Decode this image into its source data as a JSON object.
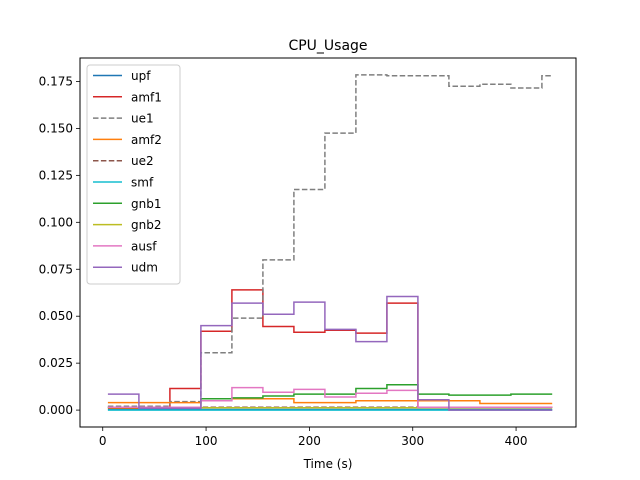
{
  "chart_data": {
    "type": "line",
    "title": "CPU_Usage",
    "xlabel": "Time (s)",
    "ylabel": "",
    "xlim": [
      -22,
      458
    ],
    "ylim": [
      -0.009,
      0.1875
    ],
    "xticks": [
      0,
      100,
      200,
      300,
      400
    ],
    "yticks": [
      0.0,
      0.025,
      0.05,
      0.075,
      0.1,
      0.125,
      0.15,
      0.175
    ],
    "ytick_labels": [
      "0.000",
      "0.025",
      "0.050",
      "0.075",
      "0.100",
      "0.125",
      "0.150",
      "0.175"
    ],
    "grid": false,
    "legend_position": "top-left",
    "series": [
      {
        "name": "upf",
        "color": "#1f77b4",
        "dash": "solid",
        "x": [
          5,
          435
        ],
        "y": [
          0.0003,
          0.0003
        ]
      },
      {
        "name": "amf1",
        "color": "#d62728",
        "dash": "solid",
        "x": [
          5,
          35,
          35,
          65,
          65,
          95,
          95,
          125,
          125,
          155,
          155,
          185,
          185,
          215,
          215,
          245,
          245,
          275,
          275,
          305,
          305,
          435
        ],
        "y": [
          0.001,
          0.001,
          0.001,
          0.001,
          0.0115,
          0.0115,
          0.042,
          0.042,
          0.064,
          0.064,
          0.0445,
          0.0445,
          0.0415,
          0.0415,
          0.0425,
          0.0425,
          0.041,
          0.041,
          0.057,
          0.057,
          0.0015,
          0.0015
        ]
      },
      {
        "name": "ue1",
        "color": "#7f7f7f",
        "dash": "dashed",
        "x": [
          5,
          65,
          65,
          95,
          95,
          125,
          125,
          155,
          155,
          185,
          185,
          215,
          215,
          245,
          245,
          275,
          275,
          335,
          335,
          365,
          365,
          395,
          395,
          425,
          425,
          435
        ],
        "y": [
          0.002,
          0.002,
          0.0045,
          0.0045,
          0.0305,
          0.0305,
          0.049,
          0.049,
          0.08,
          0.08,
          0.1175,
          0.1175,
          0.1475,
          0.1475,
          0.1785,
          0.1785,
          0.178,
          0.178,
          0.1725,
          0.1725,
          0.1735,
          0.1735,
          0.1715,
          0.1715,
          0.178,
          0.178
        ]
      },
      {
        "name": "amf2",
        "color": "#ff7f0e",
        "dash": "solid",
        "x": [
          5,
          95,
          95,
          185,
          185,
          245,
          245,
          305,
          305,
          365,
          365,
          435
        ],
        "y": [
          0.004,
          0.004,
          0.006,
          0.006,
          0.004,
          0.004,
          0.005,
          0.005,
          0.005,
          0.005,
          0.0035,
          0.0035
        ]
      },
      {
        "name": "ue2",
        "color": "#8c564b",
        "dash": "dashed",
        "x": [
          5,
          435
        ],
        "y": [
          0.0015,
          0.0015
        ]
      },
      {
        "name": "smf",
        "color": "#17becf",
        "dash": "solid",
        "x": [
          5,
          435
        ],
        "y": [
          0.0,
          0.0
        ]
      },
      {
        "name": "gnb1",
        "color": "#2ca02c",
        "dash": "solid",
        "x": [
          5,
          95,
          95,
          125,
          125,
          155,
          155,
          185,
          185,
          245,
          245,
          275,
          275,
          305,
          305,
          335,
          335,
          395,
          395,
          425,
          425,
          435
        ],
        "y": [
          0.0015,
          0.0015,
          0.006,
          0.006,
          0.0065,
          0.0065,
          0.0075,
          0.0075,
          0.0085,
          0.0085,
          0.0115,
          0.0115,
          0.0135,
          0.0135,
          0.0085,
          0.0085,
          0.008,
          0.008,
          0.0085,
          0.0085,
          0.0085,
          0.0085
        ]
      },
      {
        "name": "gnb2",
        "color": "#bcbd22",
        "dash": "solid",
        "x": [
          5,
          435
        ],
        "y": [
          0.0012,
          0.0012
        ]
      },
      {
        "name": "ausf",
        "color": "#e377c2",
        "dash": "solid",
        "x": [
          5,
          95,
          95,
          125,
          125,
          155,
          155,
          185,
          185,
          215,
          215,
          245,
          245,
          275,
          275,
          305,
          305,
          435
        ],
        "y": [
          0.0015,
          0.0015,
          0.005,
          0.005,
          0.012,
          0.012,
          0.0095,
          0.0095,
          0.011,
          0.011,
          0.007,
          0.007,
          0.009,
          0.009,
          0.0105,
          0.0105,
          0.0015,
          0.0015
        ]
      },
      {
        "name": "udm",
        "color": "#9467bd",
        "dash": "solid",
        "x": [
          5,
          35,
          35,
          95,
          95,
          125,
          125,
          155,
          155,
          185,
          185,
          215,
          215,
          245,
          245,
          275,
          275,
          305,
          305,
          335,
          335,
          435
        ],
        "y": [
          0.0085,
          0.0085,
          0.001,
          0.001,
          0.045,
          0.045,
          0.057,
          0.057,
          0.051,
          0.051,
          0.0575,
          0.0575,
          0.043,
          0.043,
          0.0365,
          0.0365,
          0.0605,
          0.0605,
          0.0055,
          0.0055,
          0.0,
          0.0
        ]
      }
    ]
  }
}
